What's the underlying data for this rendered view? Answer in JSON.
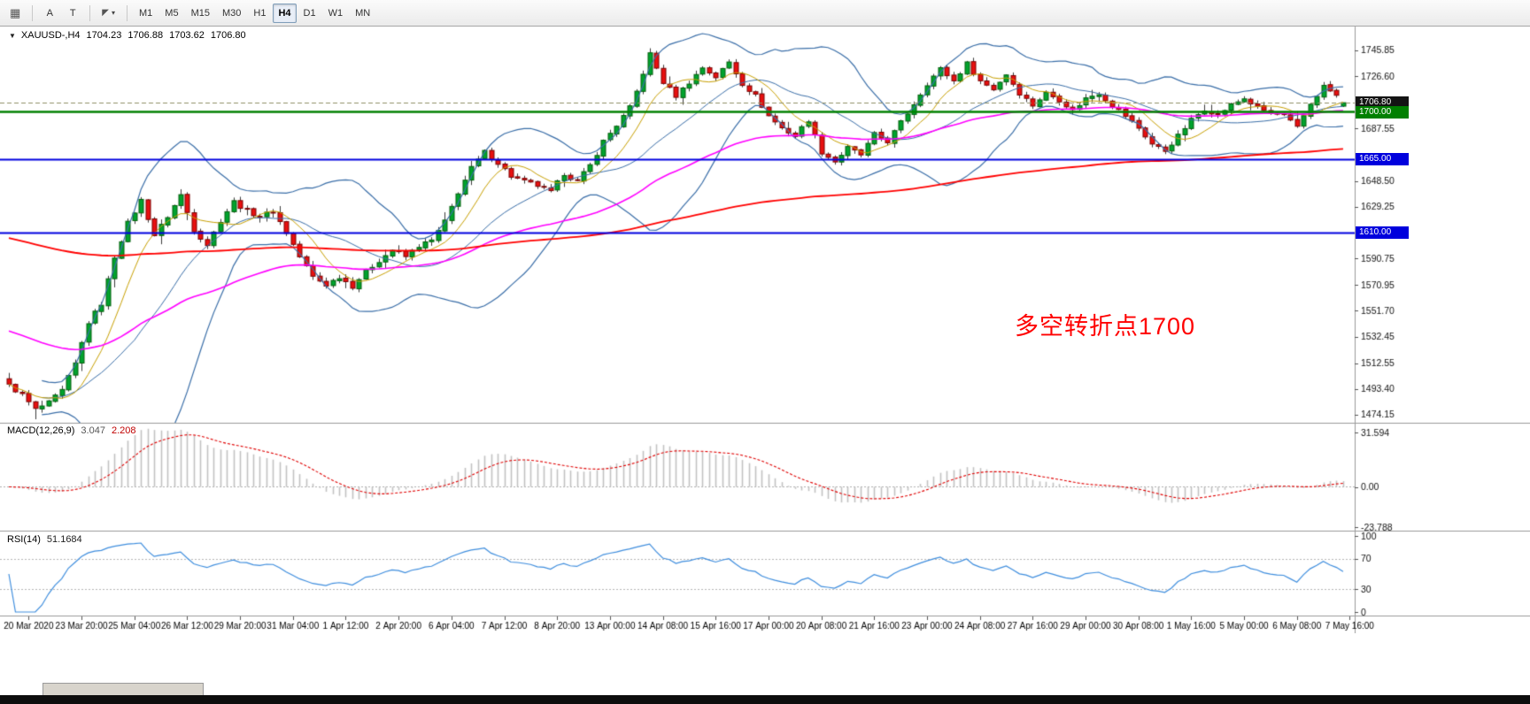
{
  "toolbar": {
    "grid_icon_glyph": "▦",
    "a_button_label": "A",
    "t_button_label": "T",
    "cursor_icon_glyph": "◤",
    "cursor_caret_glyph": "▾",
    "timeframes": [
      "M1",
      "M5",
      "M15",
      "M30",
      "H1",
      "H4",
      "D1",
      "W1",
      "MN"
    ],
    "active_timeframe": "H4"
  },
  "chart_header": {
    "symbol_dropdown_glyph": "▼",
    "symbol_timeframe": "XAUUSD-,H4",
    "open": "1704.23",
    "high": "1706.88",
    "low": "1703.62",
    "close": "1706.80"
  },
  "annotation": {
    "text": "多空转折点1700",
    "color": "#ff0000"
  },
  "price_axis": {
    "current_price_label": "1706.80",
    "level_labels": [
      "1700.00",
      "1665.00",
      "1610.00"
    ],
    "ticks": [
      1745.85,
      1726.6,
      1687.55,
      1648.5,
      1629.25,
      1590.75,
      1570.95,
      1551.7,
      1532.45,
      1512.55,
      1493.4,
      1474.15
    ]
  },
  "macd_panel": {
    "label": "MACD(12,26,9)",
    "value_main": "3.047",
    "value_signal": "2.208",
    "ticks": [
      31.594,
      0,
      -23.788
    ]
  },
  "rsi_panel": {
    "label": "RSI(14)",
    "value": "51.1684",
    "ticks": [
      100,
      70,
      30,
      0
    ],
    "levels": [
      70,
      30
    ]
  },
  "time_axis": {
    "labels": [
      "20 Mar 2020",
      "23 Mar 20:00",
      "25 Mar 04:00",
      "26 Mar 12:00",
      "29 Mar 20:00",
      "31 Mar 04:00",
      "1 Apr 12:00",
      "2 Apr 20:00",
      "6 Apr 04:00",
      "7 Apr 12:00",
      "8 Apr 20:00",
      "13 Apr 00:00",
      "14 Apr 08:00",
      "15 Apr 16:00",
      "17 Apr 00:00",
      "20 Apr 08:00",
      "21 Apr 16:00",
      "23 Apr 00:00",
      "24 Apr 08:00",
      "27 Apr 16:00",
      "29 Apr 00:00",
      "30 Apr 08:00",
      "1 May 16:00",
      "5 May 00:00",
      "6 May 08:00",
      "7 May 16:00"
    ]
  },
  "colors": {
    "bull": "#00a32e",
    "bull_border": "#045f0a",
    "bear": "#e81010",
    "bear_border": "#7a0303",
    "wick": "#3a3a3a",
    "bollinger": "#3a6ea8",
    "ma_fast_gold": "#c8a002",
    "ma_mid_magenta": "#ff00ff",
    "ma_slow_red": "#ff0000",
    "hline_green": "#008000",
    "hline_blue": "#0000e0",
    "current_price_line": "#8f8f66",
    "macd_hist": "#c2c2c2",
    "macd_signal": "#e00000",
    "rsi_line": "#3f8ede",
    "panel_border": "#9a9a9a",
    "axis_text": "#111111",
    "box_current_bg": "#141414",
    "box_green_bg": "#008000",
    "box_blue_bg": "#0000dd"
  },
  "chart_data": {
    "type": "candlestick",
    "symbol": "XAUUSD-",
    "timeframe": "H4",
    "visible_price_range": [
      1468.2,
      1763.6
    ],
    "candle_count": 203,
    "last_candle": {
      "open": 1704.23,
      "high": 1706.88,
      "low": 1703.62,
      "close": 1706.8
    },
    "close_path": [
      [
        0,
        1496
      ],
      [
        2,
        1489
      ],
      [
        4,
        1478
      ],
      [
        6,
        1483
      ],
      [
        8,
        1492
      ],
      [
        10,
        1512
      ],
      [
        12,
        1543
      ],
      [
        14,
        1557
      ],
      [
        16,
        1592
      ],
      [
        18,
        1617
      ],
      [
        20,
        1634
      ],
      [
        22,
        1608
      ],
      [
        24,
        1622
      ],
      [
        26,
        1638
      ],
      [
        28,
        1612
      ],
      [
        30,
        1601
      ],
      [
        32,
        1619
      ],
      [
        34,
        1633
      ],
      [
        36,
        1626
      ],
      [
        38,
        1622
      ],
      [
        40,
        1626
      ],
      [
        42,
        1610
      ],
      [
        44,
        1592
      ],
      [
        46,
        1577
      ],
      [
        48,
        1571
      ],
      [
        50,
        1577
      ],
      [
        52,
        1570
      ],
      [
        54,
        1581
      ],
      [
        56,
        1589
      ],
      [
        58,
        1597
      ],
      [
        60,
        1592
      ],
      [
        62,
        1600
      ],
      [
        64,
        1604
      ],
      [
        66,
        1618
      ],
      [
        68,
        1640
      ],
      [
        70,
        1658
      ],
      [
        72,
        1670
      ],
      [
        74,
        1662
      ],
      [
        76,
        1652
      ],
      [
        78,
        1648
      ],
      [
        80,
        1645
      ],
      [
        82,
        1640
      ],
      [
        84,
        1654
      ],
      [
        86,
        1648
      ],
      [
        88,
        1660
      ],
      [
        90,
        1678
      ],
      [
        92,
        1690
      ],
      [
        94,
        1703
      ],
      [
        95,
        1715
      ],
      [
        97,
        1743
      ],
      [
        99,
        1722
      ],
      [
        101,
        1712
      ],
      [
        103,
        1722
      ],
      [
        105,
        1733
      ],
      [
        107,
        1726
      ],
      [
        109,
        1737
      ],
      [
        111,
        1721
      ],
      [
        113,
        1712
      ],
      [
        115,
        1697
      ],
      [
        117,
        1688
      ],
      [
        119,
        1682
      ],
      [
        121,
        1694
      ],
      [
        123,
        1670
      ],
      [
        125,
        1663
      ],
      [
        127,
        1673
      ],
      [
        129,
        1668
      ],
      [
        131,
        1683
      ],
      [
        133,
        1678
      ],
      [
        135,
        1692
      ],
      [
        137,
        1706
      ],
      [
        139,
        1721
      ],
      [
        141,
        1732
      ],
      [
        143,
        1723
      ],
      [
        145,
        1736
      ],
      [
        147,
        1723
      ],
      [
        149,
        1717
      ],
      [
        151,
        1728
      ],
      [
        153,
        1714
      ],
      [
        155,
        1705
      ],
      [
        157,
        1714
      ],
      [
        159,
        1709
      ],
      [
        161,
        1701
      ],
      [
        163,
        1710
      ],
      [
        165,
        1714
      ],
      [
        167,
        1705
      ],
      [
        169,
        1697
      ],
      [
        171,
        1688
      ],
      [
        173,
        1676
      ],
      [
        175,
        1671
      ],
      [
        177,
        1682
      ],
      [
        179,
        1694
      ],
      [
        181,
        1702
      ],
      [
        183,
        1698
      ],
      [
        185,
        1705
      ],
      [
        187,
        1710
      ],
      [
        189,
        1703
      ],
      [
        191,
        1699
      ],
      [
        193,
        1697
      ],
      [
        195,
        1688
      ],
      [
        197,
        1706
      ],
      [
        199,
        1719
      ],
      [
        201,
        1712
      ],
      [
        202,
        1706.8
      ]
    ],
    "extremes": {
      "peak_index": 97,
      "peak_high": 1747.4,
      "start_low_index": 4,
      "start_low": 1470.8
    },
    "hlines": [
      {
        "price": 1700,
        "color": "#008000"
      },
      {
        "price": 1665,
        "color": "#0000e0"
      },
      {
        "price": 1610,
        "color": "#0000e0"
      }
    ],
    "current_price": 1706.8,
    "overlays": [
      {
        "name": "bollinger-bands",
        "period": 20,
        "deviation": 2
      },
      {
        "name": "ma-fast",
        "type": "sma",
        "period": 8
      },
      {
        "name": "ma-mid",
        "type": "ema",
        "period": 55,
        "seed": 1538
      },
      {
        "name": "ma-slow",
        "type": "ema",
        "period": 200,
        "seed": 1607
      }
    ],
    "indicators": [
      {
        "name": "MACD",
        "params": [
          12,
          26,
          9
        ],
        "current": [
          3.047,
          2.208
        ],
        "scale": [
          -23.788,
          31.594
        ]
      },
      {
        "name": "RSI",
        "params": [
          14
        ],
        "current": 51.1684,
        "scale": [
          0,
          100
        ],
        "levels": [
          70,
          30
        ]
      }
    ]
  }
}
